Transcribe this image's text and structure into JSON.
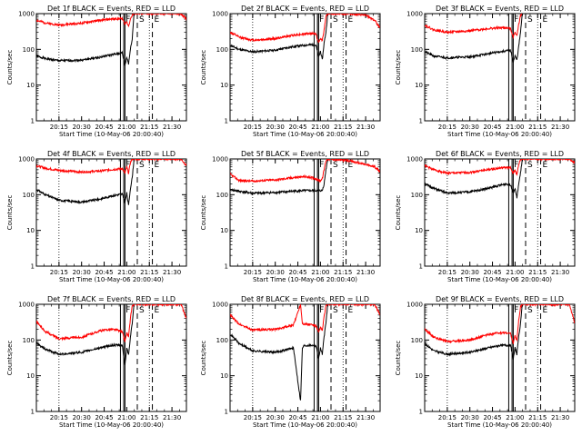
{
  "chart_data": [
    {
      "type": "line",
      "title": "Det 1f BLACK = Events, RED = LLD",
      "xlabel": "Start Time (10-May-06 20:00:40)",
      "ylabel": "Counts/sec",
      "xlim": [
        20.0,
        21.66
      ],
      "ylim": [
        1,
        1000
      ],
      "yscale": "log",
      "xticks": [
        "20:15",
        "20:30",
        "20:45",
        "21:00",
        "21:15",
        "21:30"
      ],
      "yticks": [
        "1",
        "10",
        "100",
        "1000"
      ],
      "markers": [
        {
          "label": "F",
          "time": "20:58"
        },
        {
          "label": "S",
          "time": "21:07"
        },
        {
          "label": "E",
          "time": "21:17"
        }
      ],
      "series": [
        {
          "name": "Events",
          "color": "#000000",
          "x": [
            20.0,
            20.1,
            20.25,
            20.5,
            20.7,
            20.82,
            20.9,
            20.95,
            20.98,
            21.0,
            21.02,
            21.04,
            21.06,
            21.08
          ],
          "y": [
            65,
            55,
            48,
            50,
            60,
            70,
            75,
            80,
            35,
            60,
            40,
            100,
            200,
            1000
          ]
        },
        {
          "name": "LLD",
          "color": "#ff0000",
          "x": [
            20.0,
            20.1,
            20.25,
            20.5,
            20.7,
            20.82,
            20.9,
            20.95,
            20.98,
            21.0,
            21.02,
            21.04,
            21.06,
            21.08,
            21.6,
            21.66
          ],
          "y": [
            650,
            550,
            480,
            540,
            650,
            700,
            720,
            730,
            500,
            600,
            450,
            700,
            900,
            1000,
            1000,
            700
          ]
        }
      ]
    },
    {
      "type": "line",
      "title": "Det 2f BLACK = Events, RED = LLD",
      "xlabel": "Start Time (10-May-06 20:00:40)",
      "ylabel": "Counts/sec",
      "xlim": [
        20.0,
        21.66
      ],
      "ylim": [
        1,
        1000
      ],
      "yscale": "log",
      "xticks": [
        "20:15",
        "20:30",
        "20:45",
        "21:00",
        "21:15",
        "21:30"
      ],
      "yticks": [
        "1",
        "10",
        "100",
        "1000"
      ],
      "markers": [
        {
          "label": "F",
          "time": "20:58"
        },
        {
          "label": "S",
          "time": "21:07"
        },
        {
          "label": "E",
          "time": "21:17"
        }
      ],
      "series": [
        {
          "name": "Events",
          "color": "#000000",
          "x": [
            20.0,
            20.1,
            20.25,
            20.5,
            20.7,
            20.82,
            20.9,
            20.95,
            20.98,
            21.0,
            21.02,
            21.04,
            21.06,
            21.08
          ],
          "y": [
            130,
            100,
            85,
            95,
            120,
            130,
            135,
            130,
            60,
            90,
            50,
            150,
            300,
            1000
          ]
        },
        {
          "name": "LLD",
          "color": "#ff0000",
          "x": [
            20.0,
            20.1,
            20.25,
            20.5,
            20.7,
            20.82,
            20.9,
            20.95,
            20.98,
            21.0,
            21.02,
            21.04,
            21.06,
            21.08,
            21.3,
            21.5,
            21.6,
            21.66
          ],
          "y": [
            300,
            220,
            180,
            200,
            250,
            270,
            280,
            270,
            150,
            200,
            180,
            350,
            800,
            1000,
            1000,
            900,
            650,
            400
          ]
        }
      ]
    },
    {
      "type": "line",
      "title": "Det 3f BLACK = Events, RED = LLD",
      "xlabel": "Start Time (10-May-06 20:00:40)",
      "ylabel": "Counts/sec",
      "xlim": [
        20.0,
        21.66
      ],
      "ylim": [
        1,
        1000
      ],
      "yscale": "log",
      "xticks": [
        "20:15",
        "20:30",
        "20:45",
        "21:00",
        "21:15",
        "21:30"
      ],
      "yticks": [
        "1",
        "10",
        "100",
        "1000"
      ],
      "markers": [
        {
          "label": "F",
          "time": "20:58"
        },
        {
          "label": "S",
          "time": "21:07"
        },
        {
          "label": "E",
          "time": "21:17"
        }
      ],
      "series": [
        {
          "name": "Events",
          "color": "#000000",
          "x": [
            20.0,
            20.1,
            20.25,
            20.5,
            20.7,
            20.82,
            20.9,
            20.95,
            20.98,
            21.0,
            21.02,
            21.04,
            21.06,
            21.08
          ],
          "y": [
            85,
            65,
            58,
            62,
            75,
            85,
            90,
            95,
            45,
            65,
            50,
            120,
            300,
            1000
          ]
        },
        {
          "name": "LLD",
          "color": "#ff0000",
          "x": [
            20.0,
            20.1,
            20.25,
            20.5,
            20.7,
            20.82,
            20.9,
            20.95,
            20.98,
            21.0,
            21.02,
            21.04,
            21.06,
            21.08
          ],
          "y": [
            480,
            350,
            300,
            330,
            380,
            400,
            400,
            380,
            220,
            300,
            250,
            500,
            900,
            1000
          ]
        }
      ]
    },
    {
      "type": "line",
      "title": "Det 4f BLACK = Events, RED = LLD",
      "xlabel": "Start Time (10-May-06 20:00:40)",
      "ylabel": "Counts/sec",
      "xlim": [
        20.0,
        21.66
      ],
      "ylim": [
        1,
        1000
      ],
      "yscale": "log",
      "xticks": [
        "20:15",
        "20:30",
        "20:45",
        "21:00",
        "21:15",
        "21:30"
      ],
      "yticks": [
        "1",
        "10",
        "100",
        "1000"
      ],
      "markers": [
        {
          "label": "F",
          "time": "20:58"
        },
        {
          "label": "S",
          "time": "21:07"
        },
        {
          "label": "E",
          "time": "21:17"
        }
      ],
      "series": [
        {
          "name": "Events",
          "color": "#000000",
          "x": [
            20.0,
            20.1,
            20.25,
            20.5,
            20.7,
            20.82,
            20.9,
            20.95,
            20.98,
            21.0,
            21.02,
            21.04,
            21.06,
            21.08
          ],
          "y": [
            140,
            100,
            70,
            62,
            75,
            90,
            100,
            105,
            60,
            110,
            50,
            150,
            300,
            1000
          ]
        },
        {
          "name": "LLD",
          "color": "#ff0000",
          "x": [
            20.0,
            20.1,
            20.25,
            20.5,
            20.7,
            20.82,
            20.9,
            20.95,
            20.98,
            21.0,
            21.02,
            21.04,
            21.06,
            21.08,
            21.6,
            21.66
          ],
          "y": [
            650,
            550,
            480,
            430,
            460,
            500,
            520,
            540,
            400,
            600,
            400,
            800,
            1000,
            1000,
            1000,
            650
          ]
        }
      ]
    },
    {
      "type": "line",
      "title": "Det 5f BLACK = Events, RED = LLD",
      "xlabel": "Start Time (10-May-06 20:00:40)",
      "ylabel": "Counts/sec",
      "xlim": [
        20.0,
        21.66
      ],
      "ylim": [
        1,
        1000
      ],
      "yscale": "log",
      "xticks": [
        "20:15",
        "20:30",
        "20:45",
        "21:00",
        "21:15",
        "21:30"
      ],
      "yticks": [
        "1",
        "10",
        "100",
        "1000"
      ],
      "markers": [
        {
          "label": "F",
          "time": "20:58"
        },
        {
          "label": "S",
          "time": "21:07"
        },
        {
          "label": "E",
          "time": "21:17"
        }
      ],
      "series": [
        {
          "name": "Events",
          "color": "#000000",
          "x": [
            20.0,
            20.1,
            20.25,
            20.5,
            20.7,
            20.82,
            20.9,
            20.95,
            20.98,
            21.0,
            21.02,
            21.04,
            21.06,
            21.08
          ],
          "y": [
            140,
            125,
            110,
            115,
            125,
            130,
            130,
            130,
            130,
            130,
            130,
            200,
            500,
            1000
          ]
        },
        {
          "name": "LLD",
          "color": "#ff0000",
          "x": [
            20.0,
            20.1,
            20.25,
            20.5,
            20.7,
            20.82,
            20.9,
            20.95,
            20.98,
            21.0,
            21.02,
            21.04,
            21.06,
            21.08,
            21.3,
            21.5,
            21.6,
            21.66
          ],
          "y": [
            380,
            250,
            240,
            260,
            300,
            320,
            300,
            280,
            250,
            250,
            280,
            500,
            900,
            1000,
            900,
            700,
            600,
            450
          ]
        }
      ]
    },
    {
      "type": "line",
      "title": "Det 6f BLACK = Events, RED = LLD",
      "xlabel": "Start Time (10-May-06 20:00:40)",
      "ylabel": "Counts/sec",
      "xlim": [
        20.0,
        21.66
      ],
      "ylim": [
        1,
        1000
      ],
      "yscale": "log",
      "xticks": [
        "20:15",
        "20:30",
        "20:45",
        "21:00",
        "21:15",
        "21:30"
      ],
      "yticks": [
        "1",
        "10",
        "100",
        "1000"
      ],
      "markers": [
        {
          "label": "F",
          "time": "20:58"
        },
        {
          "label": "S",
          "time": "21:07"
        },
        {
          "label": "E",
          "time": "21:17"
        }
      ],
      "series": [
        {
          "name": "Events",
          "color": "#000000",
          "x": [
            20.0,
            20.1,
            20.25,
            20.5,
            20.7,
            20.82,
            20.9,
            20.95,
            20.98,
            21.0,
            21.02,
            21.04,
            21.06,
            21.08
          ],
          "y": [
            200,
            150,
            110,
            120,
            150,
            180,
            200,
            190,
            120,
            150,
            80,
            200,
            400,
            1000
          ]
        },
        {
          "name": "LLD",
          "color": "#ff0000",
          "x": [
            20.0,
            20.1,
            20.25,
            20.5,
            20.7,
            20.82,
            20.9,
            20.95,
            20.98,
            21.0,
            21.02,
            21.04,
            21.06,
            21.08,
            21.6,
            21.66
          ],
          "y": [
            650,
            500,
            400,
            420,
            500,
            550,
            580,
            560,
            400,
            500,
            350,
            700,
            950,
            1000,
            1000,
            800
          ]
        }
      ]
    },
    {
      "type": "line",
      "title": "Det 7f BLACK = Events, RED = LLD",
      "xlabel": "Start Time (10-May-06 20:00:40)",
      "ylabel": "Counts/sec",
      "xlim": [
        20.0,
        21.66
      ],
      "ylim": [
        1,
        1000
      ],
      "yscale": "log",
      "xticks": [
        "20:15",
        "20:30",
        "20:45",
        "21:00",
        "21:15",
        "21:30"
      ],
      "yticks": [
        "1",
        "10",
        "100",
        "1000"
      ],
      "markers": [
        {
          "label": "F",
          "time": "20:58"
        },
        {
          "label": "S",
          "time": "21:07"
        },
        {
          "label": "E",
          "time": "21:17"
        }
      ],
      "series": [
        {
          "name": "Events",
          "color": "#000000",
          "x": [
            20.0,
            20.1,
            20.25,
            20.5,
            20.7,
            20.82,
            20.9,
            20.95,
            20.98,
            21.0,
            21.02,
            21.04,
            21.06,
            21.08
          ],
          "y": [
            80,
            55,
            40,
            45,
            60,
            70,
            72,
            70,
            20,
            60,
            40,
            120,
            300,
            1000
          ]
        },
        {
          "name": "LLD",
          "color": "#ff0000",
          "x": [
            20.0,
            20.1,
            20.25,
            20.5,
            20.7,
            20.82,
            20.9,
            20.95,
            20.98,
            21.0,
            21.02,
            21.04,
            21.06,
            21.08,
            21.6,
            21.66
          ],
          "y": [
            330,
            170,
            110,
            120,
            180,
            200,
            190,
            170,
            90,
            160,
            120,
            400,
            900,
            1000,
            1000,
            400
          ]
        }
      ]
    },
    {
      "type": "line",
      "title": "Det 8f BLACK = Events, RED = LLD",
      "xlabel": "Start Time (10-May-06 20:00:40)",
      "ylabel": "Counts/sec",
      "xlim": [
        20.0,
        21.66
      ],
      "ylim": [
        1,
        1000
      ],
      "yscale": "log",
      "xticks": [
        "20:15",
        "20:30",
        "20:45",
        "21:00",
        "21:15",
        "21:30"
      ],
      "yticks": [
        "1",
        "10",
        "100",
        "1000"
      ],
      "markers": [
        {
          "label": "F",
          "time": "20:58"
        },
        {
          "label": "S",
          "time": "21:07"
        },
        {
          "label": "E",
          "time": "21:17"
        }
      ],
      "series": [
        {
          "name": "Events",
          "color": "#000000",
          "x": [
            20.0,
            20.1,
            20.25,
            20.5,
            20.7,
            20.78,
            20.8,
            20.82,
            20.9,
            20.95,
            20.98,
            21.0,
            21.02,
            21.04,
            21.06,
            21.08
          ],
          "y": [
            150,
            80,
            50,
            45,
            60,
            2,
            60,
            70,
            72,
            70,
            30,
            60,
            40,
            120,
            300,
            1000
          ]
        },
        {
          "name": "LLD",
          "color": "#ff0000",
          "x": [
            20.0,
            20.1,
            20.25,
            20.5,
            20.7,
            20.78,
            20.8,
            20.82,
            20.9,
            20.95,
            20.98,
            21.0,
            21.02,
            21.04,
            21.06,
            21.08,
            21.6,
            21.66
          ],
          "y": [
            500,
            280,
            190,
            200,
            260,
            1000,
            300,
            280,
            270,
            250,
            160,
            230,
            180,
            450,
            900,
            1000,
            1000,
            500
          ]
        }
      ]
    },
    {
      "type": "line",
      "title": "Det 9f BLACK = Events, RED = LLD",
      "xlabel": "Start Time (10-May-06 20:00:40)",
      "ylabel": "Counts/sec",
      "xlim": [
        20.0,
        21.66
      ],
      "ylim": [
        1,
        1000
      ],
      "yscale": "log",
      "xticks": [
        "20:15",
        "20:30",
        "20:45",
        "21:00",
        "21:15",
        "21:30"
      ],
      "yticks": [
        "1",
        "10",
        "100",
        "1000"
      ],
      "markers": [
        {
          "label": "F",
          "time": "20:58"
        },
        {
          "label": "S",
          "time": "21:07"
        },
        {
          "label": "E",
          "time": "21:17"
        }
      ],
      "series": [
        {
          "name": "Events",
          "color": "#000000",
          "x": [
            20.0,
            20.1,
            20.25,
            20.5,
            20.7,
            20.82,
            20.9,
            20.95,
            20.98,
            21.0,
            21.02,
            21.04,
            21.06,
            21.08
          ],
          "y": [
            80,
            50,
            40,
            45,
            60,
            70,
            72,
            70,
            30,
            60,
            40,
            120,
            300,
            1000
          ]
        },
        {
          "name": "LLD",
          "color": "#ff0000",
          "x": [
            20.0,
            20.1,
            20.25,
            20.5,
            20.7,
            20.82,
            20.9,
            20.95,
            20.98,
            21.0,
            21.02,
            21.04,
            21.06,
            21.08,
            21.6,
            21.66
          ],
          "y": [
            200,
            120,
            90,
            100,
            140,
            160,
            160,
            150,
            80,
            130,
            100,
            350,
            850,
            1000,
            1000,
            300
          ]
        }
      ]
    }
  ]
}
